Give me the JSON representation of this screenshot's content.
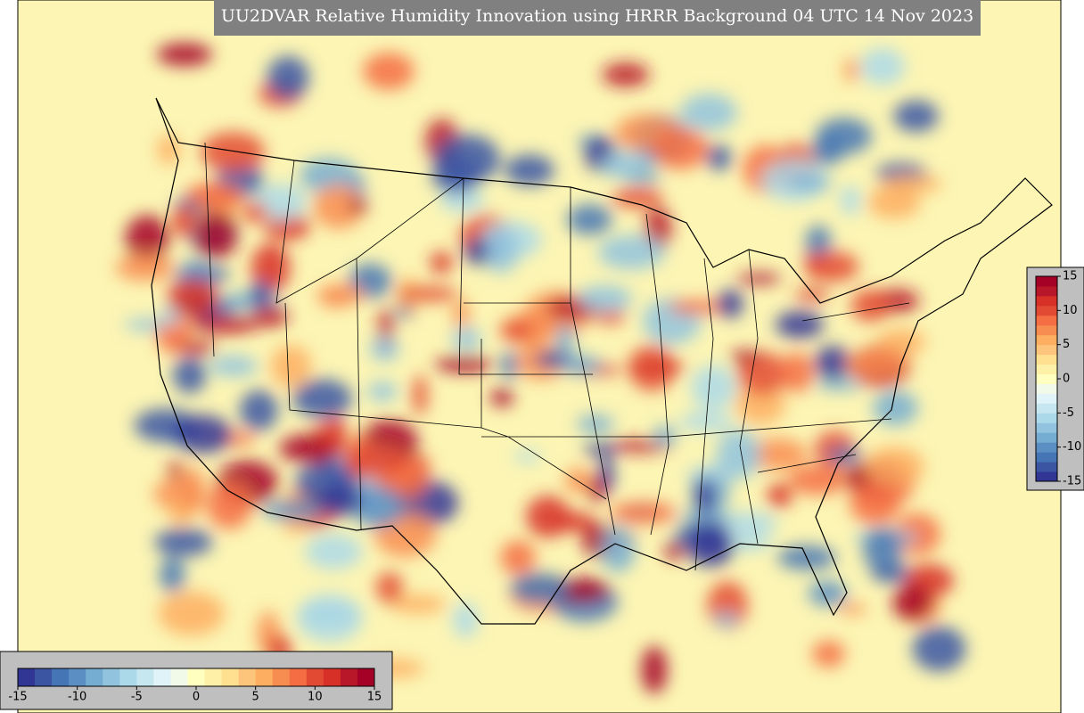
{
  "title": "UU2DVAR Relative Humidity Innovation using HRRR Background 04 UTC 14 Nov 2023",
  "colorbars": [
    {
      "orientation": "horizontal",
      "lim": [
        -15,
        15
      ],
      "ticks": [
        -15,
        -10,
        -5,
        0,
        5,
        10,
        15
      ]
    },
    {
      "orientation": "vertical",
      "lim": [
        -15,
        15
      ],
      "ticks": [
        -15,
        -10,
        -5,
        0,
        5,
        10,
        15
      ]
    }
  ],
  "colors": [
    "#313695",
    "#3b55a3",
    "#4575b4",
    "#5b8fc3",
    "#74add1",
    "#91c3de",
    "#abd9e9",
    "#c6e6f0",
    "#e0f3f8",
    "#f1f9e8",
    "#ffffbf",
    "#fff0a8",
    "#fee090",
    "#fdc57b",
    "#fdae61",
    "#f88d52",
    "#f46d43",
    "#e34a33",
    "#d73027",
    "#b8172a",
    "#a50026"
  ]
}
